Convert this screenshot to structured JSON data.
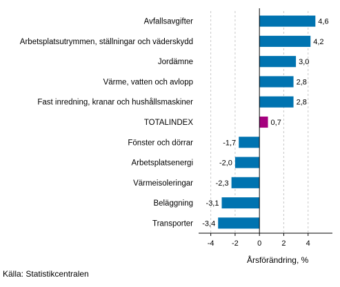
{
  "chart_data": {
    "type": "bar",
    "orientation": "horizontal",
    "categories": [
      "Avfallsavgifter",
      "Arbetsplatsutrymmen, ställningar och väderskydd",
      "Jordämne",
      "Värme, vatten och avlopp",
      "Fast inredning, kranar och hushållsmaskiner",
      "TOTALINDEX",
      "Fönster och dörrar",
      "Arbetsplatsenergi",
      "Värmeisoleringar",
      "Beläggning",
      "Transporter"
    ],
    "values": [
      4.6,
      4.2,
      3.0,
      2.8,
      2.8,
      0.7,
      -1.7,
      -2.0,
      -2.3,
      -3.1,
      -3.4
    ],
    "value_labels": [
      "4,6",
      "4,2",
      "3,0",
      "2,8",
      "2,8",
      "0,7",
      "-1,7",
      "-2,0",
      "-2,3",
      "-3,1",
      "-3,4"
    ],
    "highlight_category": "TOTALINDEX",
    "xlabel": "Årsförändring, %",
    "xlim": [
      -5,
      6
    ],
    "xticks": [
      -4,
      -2,
      0,
      2,
      4
    ],
    "xtick_labels": [
      "-4",
      "-2",
      "0",
      "2",
      "4"
    ],
    "grid": "vertical dashed",
    "colors": {
      "bar": "#0073b0",
      "highlight": "#a5007e",
      "grid": "#c8c8c8",
      "axis": "#000000"
    }
  },
  "source": "Källa: Statistikcentralen"
}
